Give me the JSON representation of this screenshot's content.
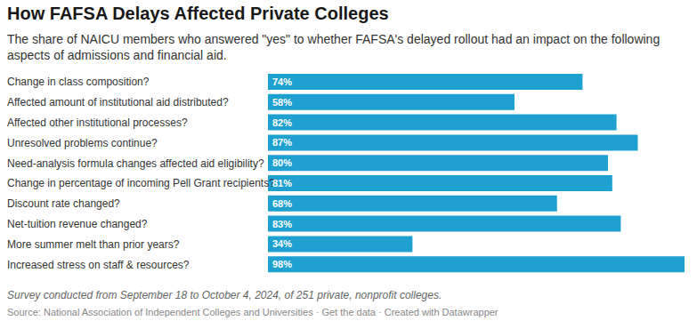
{
  "chart_data": {
    "type": "bar",
    "orientation": "horizontal",
    "title": "How FAFSA Delays Affected Private Colleges",
    "subtitle": "The share of NAICU members who answered \"yes\" to whether FAFSA's delayed rollout had an impact on the following aspects of admissions and financial aid.",
    "categories": [
      "Change in class composition?",
      "Affected amount of institutional aid distributed?",
      "Affected other institutional processes?",
      "Unresolved problems continue?",
      "Need-analysis formula changes affected aid eligibility?",
      "Change in percentage of incoming Pell Grant recipients?",
      "Discount rate changed?",
      "Net-tuition revenue changed?",
      "More summer melt than prior years?",
      "Increased stress on staff & resources?"
    ],
    "values": [
      74,
      58,
      82,
      87,
      80,
      81,
      68,
      83,
      34,
      98
    ],
    "value_labels": [
      "74%",
      "58%",
      "82%",
      "87%",
      "80%",
      "81%",
      "68%",
      "83%",
      "34%",
      "98%"
    ],
    "color": "#1ea1d1",
    "xlim": [
      0,
      98
    ],
    "grid": false,
    "data_labels": true,
    "tick_labels": false,
    "note": "Survey conducted from September 18 to October 4, 2024, of 251 private, nonprofit colleges.",
    "source": "Source: National Association of Independent Colleges and Universities · Get the data · Created with Datawrapper"
  }
}
